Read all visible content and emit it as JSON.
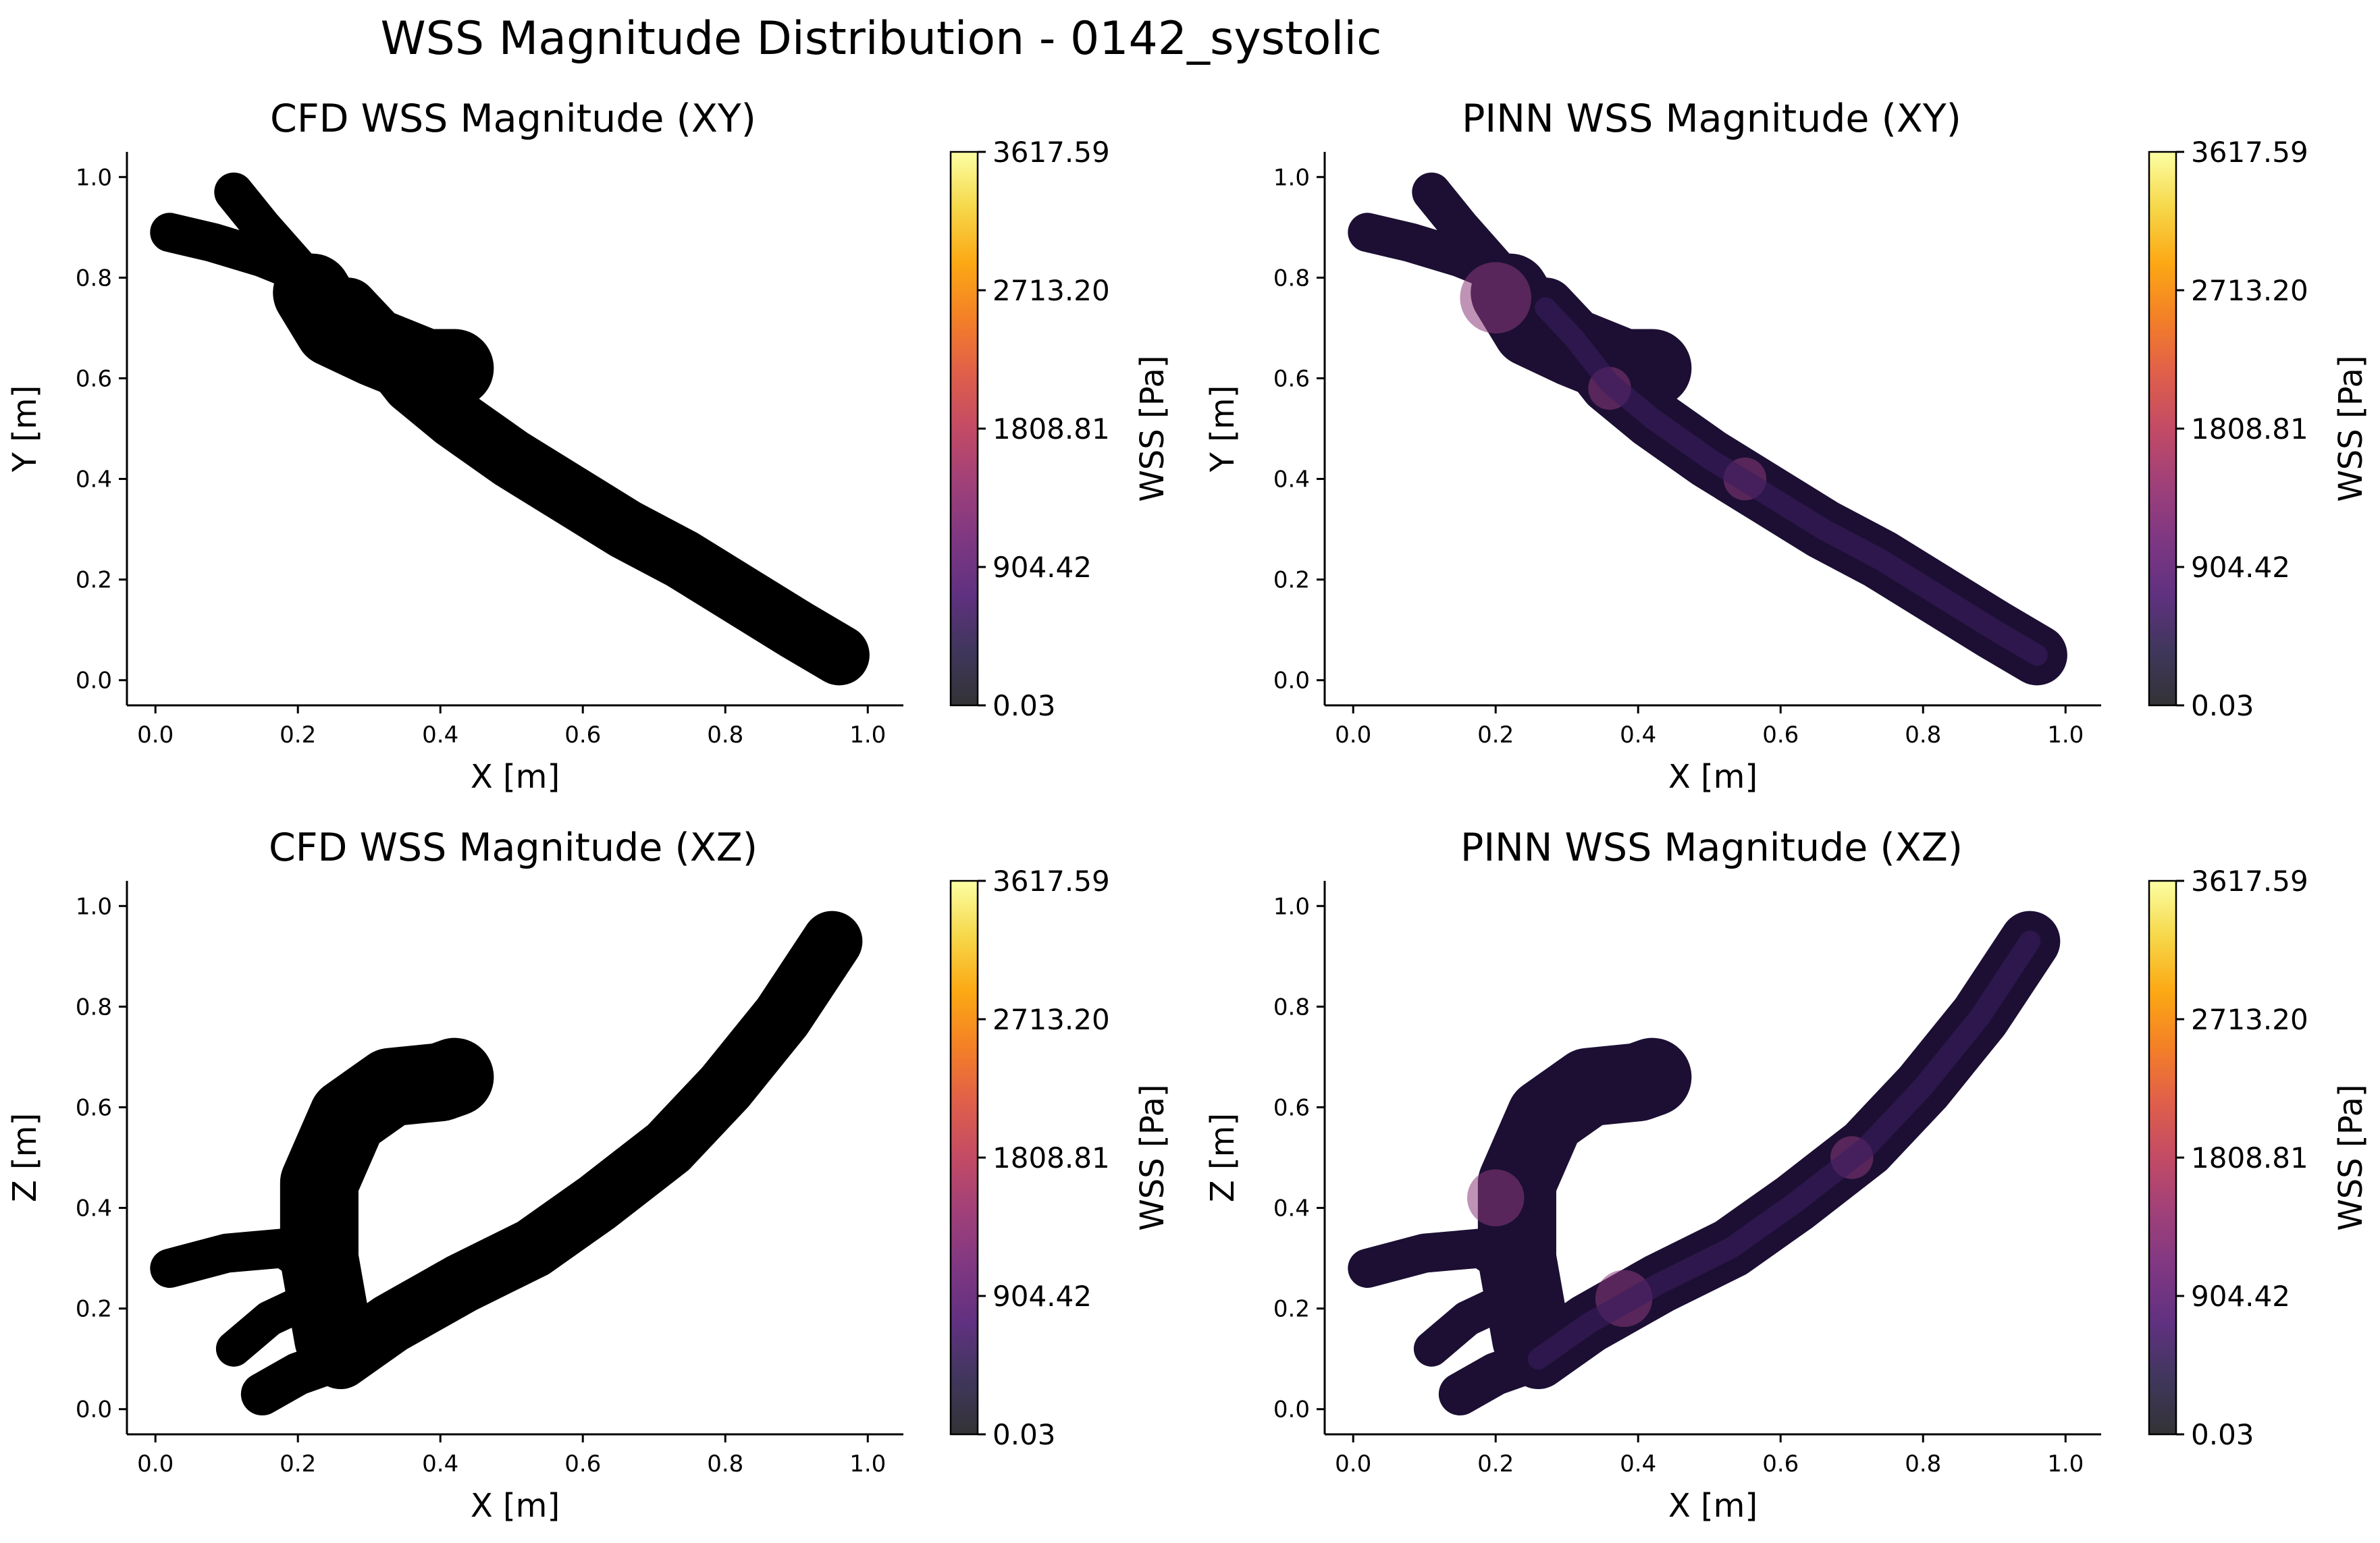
{
  "figure": {
    "title": "WSS Magnitude Distribution - 0142_systolic"
  },
  "colors": {
    "cfd_fill": "#000000",
    "pinn_base": "#1c0f33",
    "pinn_mid": "#3a1c5e",
    "pinn_hot": "#8a3a7a",
    "colormap": "inferno"
  },
  "chart_data": [
    {
      "type": "scatter",
      "panel": "cfd-xy",
      "title": "CFD WSS Magnitude (XY)",
      "xlabel": "X [m]",
      "ylabel": "Y [m]",
      "xlim": [
        -0.04,
        1.05
      ],
      "ylim": [
        -0.05,
        1.05
      ],
      "xticks": [
        "0.0",
        "0.2",
        "0.4",
        "0.6",
        "0.8",
        "1.0"
      ],
      "yticks": [
        "0.0",
        "0.2",
        "0.4",
        "0.6",
        "0.8",
        "1.0"
      ],
      "colorbar": {
        "label": "WSS [Pa]",
        "min": 0.03,
        "max": 3617.59,
        "ticks": [
          "0.03",
          "904.42",
          "1808.81",
          "2713.20",
          "3617.59"
        ]
      }
    },
    {
      "type": "scatter",
      "panel": "pinn-xy",
      "title": "PINN WSS Magnitude (XY)",
      "xlabel": "X [m]",
      "ylabel": "Y [m]",
      "xlim": [
        -0.04,
        1.05
      ],
      "ylim": [
        -0.05,
        1.05
      ],
      "xticks": [
        "0.0",
        "0.2",
        "0.4",
        "0.6",
        "0.8",
        "1.0"
      ],
      "yticks": [
        "0.0",
        "0.2",
        "0.4",
        "0.6",
        "0.8",
        "1.0"
      ],
      "colorbar": {
        "label": "WSS [Pa]",
        "min": 0.03,
        "max": 3617.59,
        "ticks": [
          "0.03",
          "904.42",
          "1808.81",
          "2713.20",
          "3617.59"
        ]
      }
    },
    {
      "type": "scatter",
      "panel": "cfd-xz",
      "title": "CFD WSS Magnitude (XZ)",
      "xlabel": "X [m]",
      "ylabel": "Z [m]",
      "xlim": [
        -0.04,
        1.05
      ],
      "ylim": [
        -0.05,
        1.05
      ],
      "xticks": [
        "0.0",
        "0.2",
        "0.4",
        "0.6",
        "0.8",
        "1.0"
      ],
      "yticks": [
        "0.0",
        "0.2",
        "0.4",
        "0.6",
        "0.8",
        "1.0"
      ],
      "colorbar": {
        "label": "WSS [Pa]",
        "min": 0.03,
        "max": 3617.59,
        "ticks": [
          "0.03",
          "904.42",
          "1808.81",
          "2713.20",
          "3617.59"
        ]
      }
    },
    {
      "type": "scatter",
      "panel": "pinn-xz",
      "title": "PINN WSS Magnitude (XZ)",
      "xlabel": "X [m]",
      "ylabel": "Z [m]",
      "xlim": [
        -0.04,
        1.05
      ],
      "ylim": [
        -0.05,
        1.05
      ],
      "xticks": [
        "0.0",
        "0.2",
        "0.4",
        "0.6",
        "0.8",
        "1.0"
      ],
      "yticks": [
        "0.0",
        "0.2",
        "0.4",
        "0.6",
        "0.8",
        "1.0"
      ],
      "colorbar": {
        "label": "WSS [Pa]",
        "min": 0.03,
        "max": 3617.59,
        "ticks": [
          "0.03",
          "904.42",
          "1808.81",
          "2713.20",
          "3617.59"
        ]
      }
    }
  ]
}
